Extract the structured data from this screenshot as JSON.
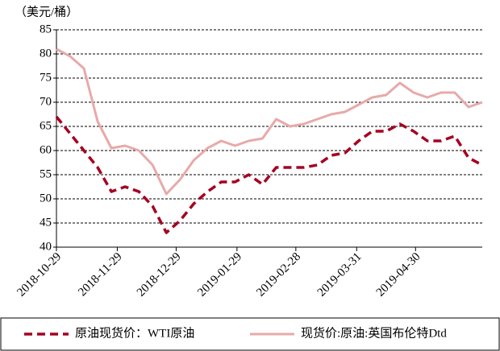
{
  "chart_data": {
    "type": "line",
    "y_label": "（美元/桶）",
    "x": [
      "2018-10-29",
      "2018-11-05",
      "2018-11-12",
      "2018-11-19",
      "2018-11-26",
      "2018-12-03",
      "2018-12-10",
      "2018-12-17",
      "2018-12-24",
      "2018-12-31",
      "2019-01-07",
      "2019-01-14",
      "2019-01-21",
      "2019-01-28",
      "2019-02-04",
      "2019-02-11",
      "2019-02-18",
      "2019-02-25",
      "2019-03-04",
      "2019-03-11",
      "2019-03-18",
      "2019-03-25",
      "2019-04-01",
      "2019-04-08",
      "2019-04-15",
      "2019-04-22",
      "2019-04-29",
      "2019-05-06",
      "2019-05-13",
      "2019-05-20",
      "2019-05-27",
      "2019-06-03"
    ],
    "series": [
      {
        "name": "原油现货价：WTI原油",
        "color": "#a50021",
        "dashed": true,
        "values": [
          67,
          63.5,
          60,
          56.5,
          51.5,
          52.5,
          51.5,
          48.5,
          43,
          45.5,
          49,
          51.5,
          53.5,
          53.5,
          55,
          53,
          56.5,
          56.5,
          56.5,
          57,
          59,
          59.5,
          62,
          64,
          64,
          65.5,
          64,
          62,
          62,
          63,
          58.5,
          57
        ]
      },
      {
        "name": "现货价:原油:英国布伦特Dtd",
        "color": "#e8a9a9",
        "dashed": false,
        "values": [
          81,
          79.5,
          77,
          66,
          60.5,
          61,
          60,
          57,
          51,
          54,
          58,
          60.5,
          62,
          61,
          62,
          62.5,
          66.5,
          65,
          65.5,
          66.5,
          67.5,
          68,
          69.5,
          71,
          71.5,
          74,
          72,
          71,
          72,
          72,
          69,
          70
        ]
      }
    ],
    "xlim": [
      "2018-10-29",
      "2019-06-03"
    ],
    "xticks": [
      "2018-10-29",
      "2018-11-29",
      "2018-12-29",
      "2019-01-29",
      "2019-02-28",
      "2019-03-31",
      "2019-04-30"
    ],
    "ylim": [
      40,
      85
    ],
    "yticks": [
      40,
      45,
      50,
      55,
      60,
      65,
      70,
      75,
      80,
      85
    ],
    "grid": true,
    "legend": "bottom"
  }
}
